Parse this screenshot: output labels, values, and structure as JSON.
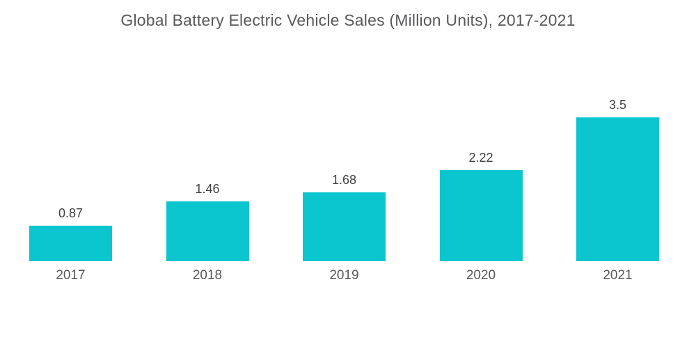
{
  "title": "Global Battery Electric Vehicle Sales (Million Units), 2017-2021",
  "colors": {
    "background": "#FFFFFF",
    "bar": "#0BC6CE",
    "title_text": "#58595B",
    "value_label": "#414042",
    "year_label": "#58595B"
  },
  "chart_data": {
    "type": "bar",
    "title": "Global Battery Electric Vehicle Sales (Million Units), 2017-2021",
    "categories": [
      "2017",
      "2018",
      "2019",
      "2020",
      "2021"
    ],
    "values": [
      0.87,
      1.46,
      1.68,
      2.22,
      3.5
    ],
    "value_labels": [
      "0.87",
      "1.46",
      "1.68",
      "2.22",
      "3.5"
    ],
    "xlabel": "",
    "ylabel": "",
    "ylim": [
      0,
      3.5
    ],
    "grid": false,
    "legend": false,
    "axes_visible": false,
    "data_labels_position": "above-bar",
    "category_labels_position": "below-bar"
  }
}
